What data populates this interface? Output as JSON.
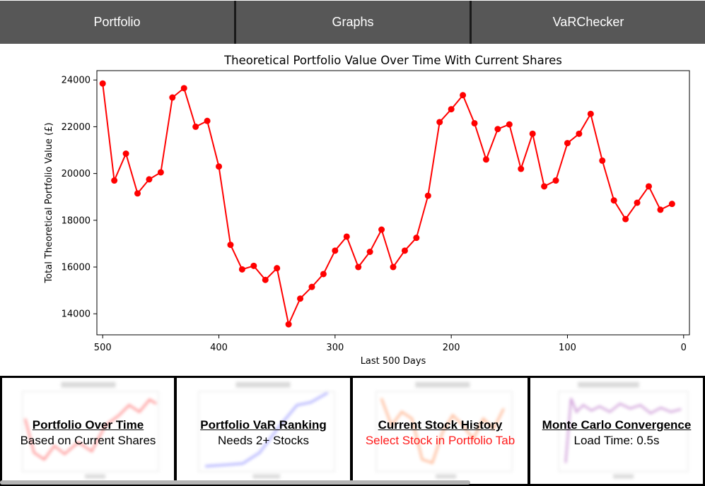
{
  "tabs": [
    {
      "label": "Portfolio"
    },
    {
      "label": "Graphs"
    },
    {
      "label": "VaRChecker"
    }
  ],
  "chart_data": {
    "type": "line",
    "title": "Theoretical Portfolio Value Over Time With Current Shares",
    "xlabel": "Last 500 Days",
    "ylabel": "Total Theoretical Portfolio Value (£)",
    "xlim": [
      505,
      -5
    ],
    "ylim": [
      13100,
      24400
    ],
    "x_reversed": true,
    "xticks": [
      500,
      400,
      300,
      200,
      100,
      0
    ],
    "yticks": [
      14000,
      16000,
      18000,
      20000,
      22000,
      24000
    ],
    "color": "#ff0000",
    "grid": false,
    "x": [
      500,
      490,
      480,
      470,
      460,
      450,
      440,
      430,
      420,
      410,
      400,
      390,
      380,
      370,
      360,
      350,
      340,
      330,
      320,
      310,
      300,
      290,
      280,
      270,
      260,
      250,
      240,
      230,
      220,
      210,
      200,
      190,
      180,
      170,
      160,
      150,
      140,
      130,
      120,
      110,
      100,
      90,
      80,
      70,
      60,
      50,
      40,
      30,
      20,
      10
    ],
    "values": [
      23850,
      19700,
      20850,
      19150,
      19750,
      20050,
      23250,
      23650,
      22000,
      22250,
      20300,
      16950,
      15900,
      16050,
      15450,
      15950,
      13550,
      14650,
      15150,
      15700,
      16700,
      17300,
      16000,
      16650,
      17600,
      16000,
      16700,
      17250,
      19050,
      22200,
      22750,
      23350,
      22150,
      20600,
      21900,
      22100,
      20200,
      21700,
      19450,
      19700,
      21300,
      21700,
      22550,
      20550,
      18850,
      18050,
      18750,
      19450,
      18450,
      18700
    ]
  },
  "cards": [
    {
      "title": "Portfolio Over Time",
      "subtitle": "Based on Current Shares",
      "subtitle_color": "#000000"
    },
    {
      "title": "Portfolio VaR Ranking",
      "subtitle": "Needs 2+ Stocks",
      "subtitle_color": "#000000"
    },
    {
      "title": "Current Stock History",
      "subtitle": "Select Stock in Portfolio Tab",
      "subtitle_color": "#ff1a1a"
    },
    {
      "title": "Monte Carlo Convergence",
      "subtitle": "Load Time: 0.5s",
      "subtitle_color": "#000000"
    }
  ]
}
